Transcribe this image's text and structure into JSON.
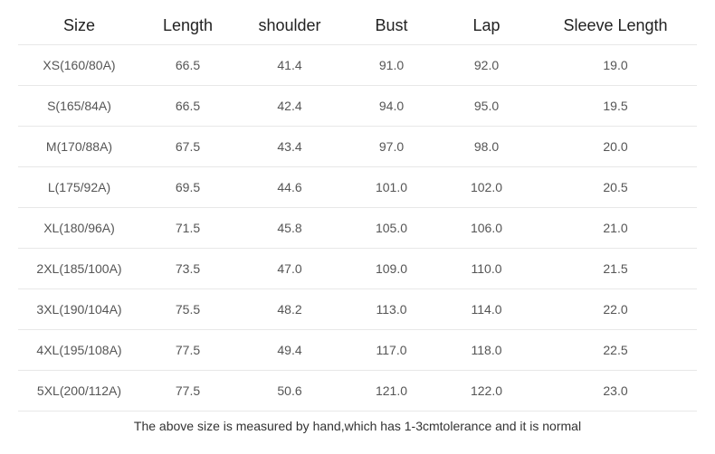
{
  "size_table": {
    "type": "table",
    "background_color": "#ffffff",
    "border_color": "#e8e8e8",
    "header_fontsize": 18,
    "cell_fontsize": 14,
    "header_color": "#222222",
    "cell_color": "#555555",
    "columns": [
      "Size",
      "Length",
      "shoulder",
      "Bust",
      "Lap",
      "Sleeve Length"
    ],
    "rows": [
      [
        "XS(160/80A)",
        "66.5",
        "41.4",
        "91.0",
        "92.0",
        "19.0"
      ],
      [
        "S(165/84A)",
        "66.5",
        "42.4",
        "94.0",
        "95.0",
        "19.5"
      ],
      [
        "M(170/88A)",
        "67.5",
        "43.4",
        "97.0",
        "98.0",
        "20.0"
      ],
      [
        "L(175/92A)",
        "69.5",
        "44.6",
        "101.0",
        "102.0",
        "20.5"
      ],
      [
        "XL(180/96A)",
        "71.5",
        "45.8",
        "105.0",
        "106.0",
        "21.0"
      ],
      [
        "2XL(185/100A)",
        "73.5",
        "47.0",
        "109.0",
        "110.0",
        "21.5"
      ],
      [
        "3XL(190/104A)",
        "75.5",
        "48.2",
        "113.0",
        "114.0",
        "22.0"
      ],
      [
        "4XL(195/108A)",
        "77.5",
        "49.4",
        "117.0",
        "118.0",
        "22.5"
      ],
      [
        "5XL(200/112A)",
        "77.5",
        "50.6",
        "121.0",
        "122.0",
        "23.0"
      ]
    ]
  },
  "footnote": "The above size is measured by hand,which has 1-3cmtolerance and it is normal"
}
